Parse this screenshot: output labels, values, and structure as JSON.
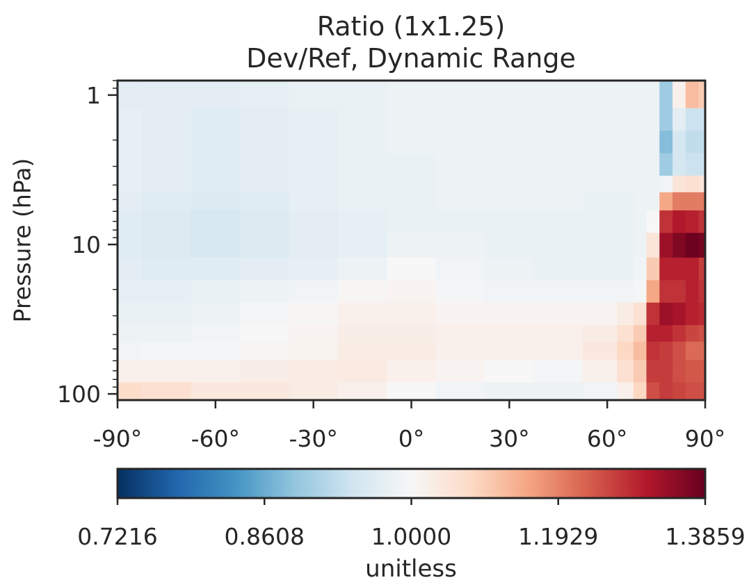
{
  "chart_data": {
    "type": "heatmap",
    "title": "Ratio (1x1.25)",
    "subtitle": "Dev/Ref, Dynamic Range",
    "xlabel": "",
    "ylabel": "Pressure (hPa)",
    "x_ticks": [
      "-90°",
      "-60°",
      "-30°",
      "0°",
      "30°",
      "60°",
      "90°"
    ],
    "x_tick_values": [
      -90,
      -60,
      -30,
      0,
      30,
      60,
      90
    ],
    "xlim": [
      -90,
      90
    ],
    "y_scale": "log",
    "y_ticks": [
      "1",
      "10",
      "100"
    ],
    "y_tick_values": [
      1,
      10,
      100
    ],
    "ylim": [
      0.8,
      110
    ],
    "colormap": "RdBu_r (diverging, blue = low, red = high)",
    "colorbar": {
      "label": "unitless",
      "ticks": [
        "0.7216",
        "0.8608",
        "1.0000",
        "1.1929",
        "1.3859"
      ],
      "tick_values": [
        0.7216,
        0.8608,
        1.0,
        1.1929,
        1.3859
      ],
      "range": [
        0.7216,
        1.3859
      ]
    },
    "latitudes": [
      -90,
      -75,
      -60,
      -45,
      -30,
      -15,
      0,
      15,
      30,
      45,
      60,
      66,
      70,
      74,
      78,
      82,
      86,
      90
    ],
    "pressure_levels": [
      1,
      1.5,
      2,
      3,
      4,
      5,
      7,
      10,
      15,
      20,
      30,
      40,
      50,
      70,
      100
    ],
    "values": [
      [
        0.97,
        0.97,
        0.97,
        0.975,
        0.98,
        0.98,
        0.985,
        0.985,
        0.985,
        0.985,
        0.985,
        0.985,
        0.985,
        0.985,
        0.9,
        1.02,
        1.12,
        1.1
      ],
      [
        0.975,
        0.97,
        0.965,
        0.97,
        0.975,
        0.98,
        0.985,
        0.985,
        0.985,
        0.985,
        0.985,
        0.985,
        0.985,
        0.985,
        0.9,
        0.97,
        0.94,
        0.94
      ],
      [
        0.975,
        0.97,
        0.965,
        0.97,
        0.975,
        0.98,
        0.985,
        0.985,
        0.985,
        0.985,
        0.985,
        0.985,
        0.985,
        0.985,
        0.88,
        0.95,
        0.93,
        0.93
      ],
      [
        0.975,
        0.97,
        0.965,
        0.97,
        0.975,
        0.98,
        0.98,
        0.985,
        0.985,
        0.985,
        0.985,
        0.985,
        0.985,
        0.985,
        0.9,
        0.95,
        0.94,
        0.94
      ],
      [
        0.975,
        0.97,
        0.965,
        0.97,
        0.975,
        0.98,
        0.98,
        0.985,
        0.985,
        0.985,
        0.985,
        0.985,
        0.985,
        0.985,
        0.99,
        1.05,
        1.06,
        1.05
      ],
      [
        0.97,
        0.965,
        0.96,
        0.965,
        0.975,
        0.98,
        0.98,
        0.985,
        0.985,
        0.985,
        0.98,
        0.98,
        0.985,
        0.985,
        1.15,
        1.2,
        1.2,
        1.2
      ],
      [
        0.965,
        0.96,
        0.955,
        0.96,
        0.97,
        0.975,
        0.98,
        0.98,
        0.98,
        0.98,
        0.98,
        0.98,
        0.985,
        1.0,
        1.28,
        1.31,
        1.3,
        1.28
      ],
      [
        0.965,
        0.96,
        0.955,
        0.96,
        0.97,
        0.975,
        0.985,
        0.985,
        0.98,
        0.98,
        0.98,
        0.98,
        0.985,
        1.05,
        1.33,
        1.36,
        1.38,
        1.37
      ],
      [
        0.97,
        0.965,
        0.965,
        0.97,
        0.975,
        0.985,
        1.0,
        0.99,
        0.985,
        0.98,
        0.98,
        0.98,
        0.99,
        1.1,
        1.3,
        1.3,
        1.3,
        1.27
      ],
      [
        0.975,
        0.975,
        0.98,
        0.985,
        0.99,
        1.005,
        1.01,
        0.995,
        0.99,
        0.99,
        0.99,
        0.99,
        0.995,
        1.15,
        1.28,
        1.28,
        1.3,
        1.28
      ],
      [
        0.98,
        0.98,
        0.985,
        0.995,
        1.005,
        1.02,
        1.02,
        1.01,
        1.01,
        1.01,
        1.01,
        1.03,
        1.06,
        1.28,
        1.33,
        1.32,
        1.3,
        1.29
      ],
      [
        0.985,
        0.985,
        0.99,
        1.0,
        1.01,
        1.025,
        1.025,
        1.02,
        1.02,
        1.02,
        1.03,
        1.06,
        1.1,
        1.3,
        1.3,
        1.28,
        1.26,
        1.25
      ],
      [
        0.99,
        0.995,
        0.995,
        1.005,
        1.015,
        1.03,
        1.03,
        1.02,
        1.02,
        1.02,
        1.04,
        1.08,
        1.12,
        1.28,
        1.27,
        1.25,
        1.22,
        1.22
      ],
      [
        1.02,
        1.02,
        1.02,
        1.025,
        1.03,
        1.035,
        1.02,
        1.01,
        1.0,
        0.995,
        1.02,
        1.06,
        1.1,
        1.27,
        1.27,
        1.25,
        1.24,
        1.24
      ],
      [
        1.07,
        1.06,
        1.04,
        1.04,
        1.03,
        1.02,
        1.0,
        0.99,
        0.985,
        0.985,
        0.99,
        1.02,
        1.08,
        1.25,
        1.27,
        1.26,
        1.25,
        1.25
      ]
    ]
  }
}
